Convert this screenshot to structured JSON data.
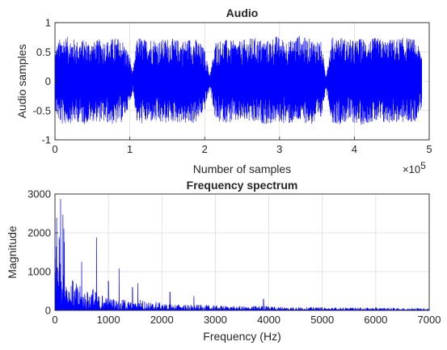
{
  "chart_data": [
    {
      "type": "line",
      "title": "Audio",
      "xlabel": "Number of samples",
      "ylabel": "Audio samples",
      "x_exponent_label": "×10",
      "x_exponent_power": "5",
      "xlim": [
        0,
        500000
      ],
      "ylim": [
        -1,
        1
      ],
      "xticks": [
        0,
        100000,
        200000,
        300000,
        400000,
        500000
      ],
      "xtick_labels": [
        "0",
        "1",
        "2",
        "3",
        "4",
        "5"
      ],
      "yticks": [
        -1,
        -0.5,
        0,
        0.5,
        1
      ],
      "ytick_labels": [
        "-1",
        "-0.5",
        "0",
        "0.5",
        "1"
      ],
      "grid": true,
      "color": "#0000ff",
      "samples": 490000,
      "envelope": {
        "x": [
          0,
          5000,
          10000,
          20000,
          30000,
          40000,
          52000,
          60000,
          70000,
          80000,
          90000,
          100000,
          104000,
          110000,
          120000,
          130000,
          140000,
          150000,
          160000,
          170000,
          180000,
          190000,
          200000,
          207000,
          215000,
          225000,
          235000,
          245000,
          255000,
          265000,
          275000,
          285000,
          295000,
          305000,
          315000,
          325000,
          335000,
          345000,
          355000,
          362000,
          370000,
          380000,
          390000,
          400000,
          410000,
          420000,
          430000,
          440000,
          450000,
          460000,
          470000,
          480000,
          490000
        ],
        "max": [
          0.55,
          0.7,
          0.78,
          0.75,
          0.7,
          0.72,
          0.68,
          0.72,
          0.7,
          0.75,
          0.72,
          0.45,
          0.15,
          0.78,
          0.72,
          0.75,
          0.7,
          0.74,
          0.72,
          0.7,
          0.74,
          0.72,
          0.55,
          0.12,
          0.7,
          0.72,
          0.7,
          0.68,
          0.72,
          0.75,
          0.72,
          0.7,
          0.78,
          0.72,
          0.7,
          0.8,
          0.74,
          0.72,
          0.7,
          0.12,
          0.75,
          0.78,
          0.72,
          0.7,
          0.74,
          0.72,
          0.75,
          0.7,
          0.72,
          0.74,
          0.75,
          0.72,
          0.5
        ],
        "min": [
          -0.5,
          -0.7,
          -0.75,
          -0.72,
          -0.7,
          -0.74,
          -0.68,
          -0.7,
          -0.72,
          -0.75,
          -0.7,
          -0.4,
          -0.15,
          -0.75,
          -0.72,
          -0.7,
          -0.74,
          -0.72,
          -0.7,
          -0.72,
          -0.75,
          -0.7,
          -0.5,
          -0.12,
          -0.72,
          -0.7,
          -0.72,
          -0.7,
          -0.68,
          -0.74,
          -0.72,
          -0.75,
          -0.7,
          -0.72,
          -0.74,
          -0.7,
          -0.72,
          -0.75,
          -0.7,
          -0.12,
          -0.72,
          -0.74,
          -0.7,
          -0.72,
          -0.75,
          -0.7,
          -0.72,
          -0.74,
          -0.7,
          -0.72,
          -0.7,
          -0.72,
          -0.45
        ]
      }
    },
    {
      "type": "line",
      "title": "Frequency spectrum",
      "xlabel": "Frequency (Hz)",
      "ylabel": "Magnitude",
      "xlim": [
        0,
        7000
      ],
      "ylim": [
        0,
        3000
      ],
      "xticks": [
        0,
        1000,
        2000,
        3000,
        4000,
        5000,
        6000,
        7000
      ],
      "xtick_labels": [
        "0",
        "1000",
        "2000",
        "3000",
        "4000",
        "5000",
        "6000",
        "7000"
      ],
      "yticks": [
        0,
        1000,
        2000,
        3000
      ],
      "ytick_labels": [
        "0",
        "1000",
        "2000",
        "3000"
      ],
      "grid": true,
      "color": "#0000ff",
      "envelope": {
        "x": [
          0,
          40,
          80,
          120,
          160,
          200,
          250,
          300,
          400,
          500,
          600,
          700,
          800,
          900,
          1000,
          1100,
          1200,
          1300,
          1400,
          1500,
          1600,
          1700,
          1800,
          1900,
          2000,
          2200,
          2400,
          2600,
          2800,
          3000,
          3200,
          3400,
          3600,
          3800,
          3900,
          4000,
          4200,
          4500,
          5000,
          5500,
          6000,
          6500,
          7000
        ],
        "max": [
          3000,
          3000,
          3000,
          3000,
          2600,
          1200,
          900,
          850,
          700,
          600,
          500,
          650,
          400,
          450,
          300,
          350,
          250,
          300,
          250,
          200,
          300,
          250,
          200,
          250,
          180,
          170,
          160,
          150,
          140,
          130,
          120,
          110,
          110,
          120,
          130,
          110,
          100,
          90,
          80,
          75,
          70,
          65,
          60
        ]
      },
      "peaks": [
        {
          "x": 780,
          "y": 1880
        },
        {
          "x": 500,
          "y": 1250
        },
        {
          "x": 1200,
          "y": 1080
        },
        {
          "x": 1000,
          "y": 760
        },
        {
          "x": 1550,
          "y": 700
        },
        {
          "x": 1450,
          "y": 600
        },
        {
          "x": 2150,
          "y": 480
        },
        {
          "x": 2600,
          "y": 370
        },
        {
          "x": 3900,
          "y": 300
        }
      ]
    }
  ]
}
